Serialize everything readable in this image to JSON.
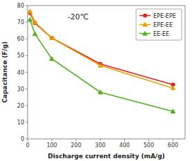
{
  "chart_data": {
    "type": "line",
    "title": "-20℃",
    "x_label": "Discharge current density (mA/g)",
    "y_label": "Capacitance (F/g)",
    "x": [
      10,
      30,
      100,
      300,
      600
    ],
    "series": [
      {
        "name": "EPE-EPE",
        "color": "#dd2020",
        "marker": "circle",
        "values": [
          75.5,
          69.5,
          60.5,
          45.0,
          32.5
        ]
      },
      {
        "name": "EPE-EE",
        "color": "#e8a000",
        "marker": "triangle",
        "values": [
          76.5,
          70.0,
          60.5,
          44.0,
          30.5
        ]
      },
      {
        "name": "EE-EE",
        "color": "#50b020",
        "marker": "triangle",
        "values": [
          71.5,
          63.0,
          48.0,
          28.0,
          16.5
        ]
      }
    ],
    "xlim": [
      0,
      650
    ],
    "ylim": [
      0,
      80
    ],
    "xticks": [
      0,
      100,
      200,
      300,
      400,
      500,
      600
    ],
    "yticks": [
      0,
      10,
      20,
      30,
      40,
      50,
      60,
      70,
      80
    ],
    "grid": false,
    "legend": "upper right"
  }
}
